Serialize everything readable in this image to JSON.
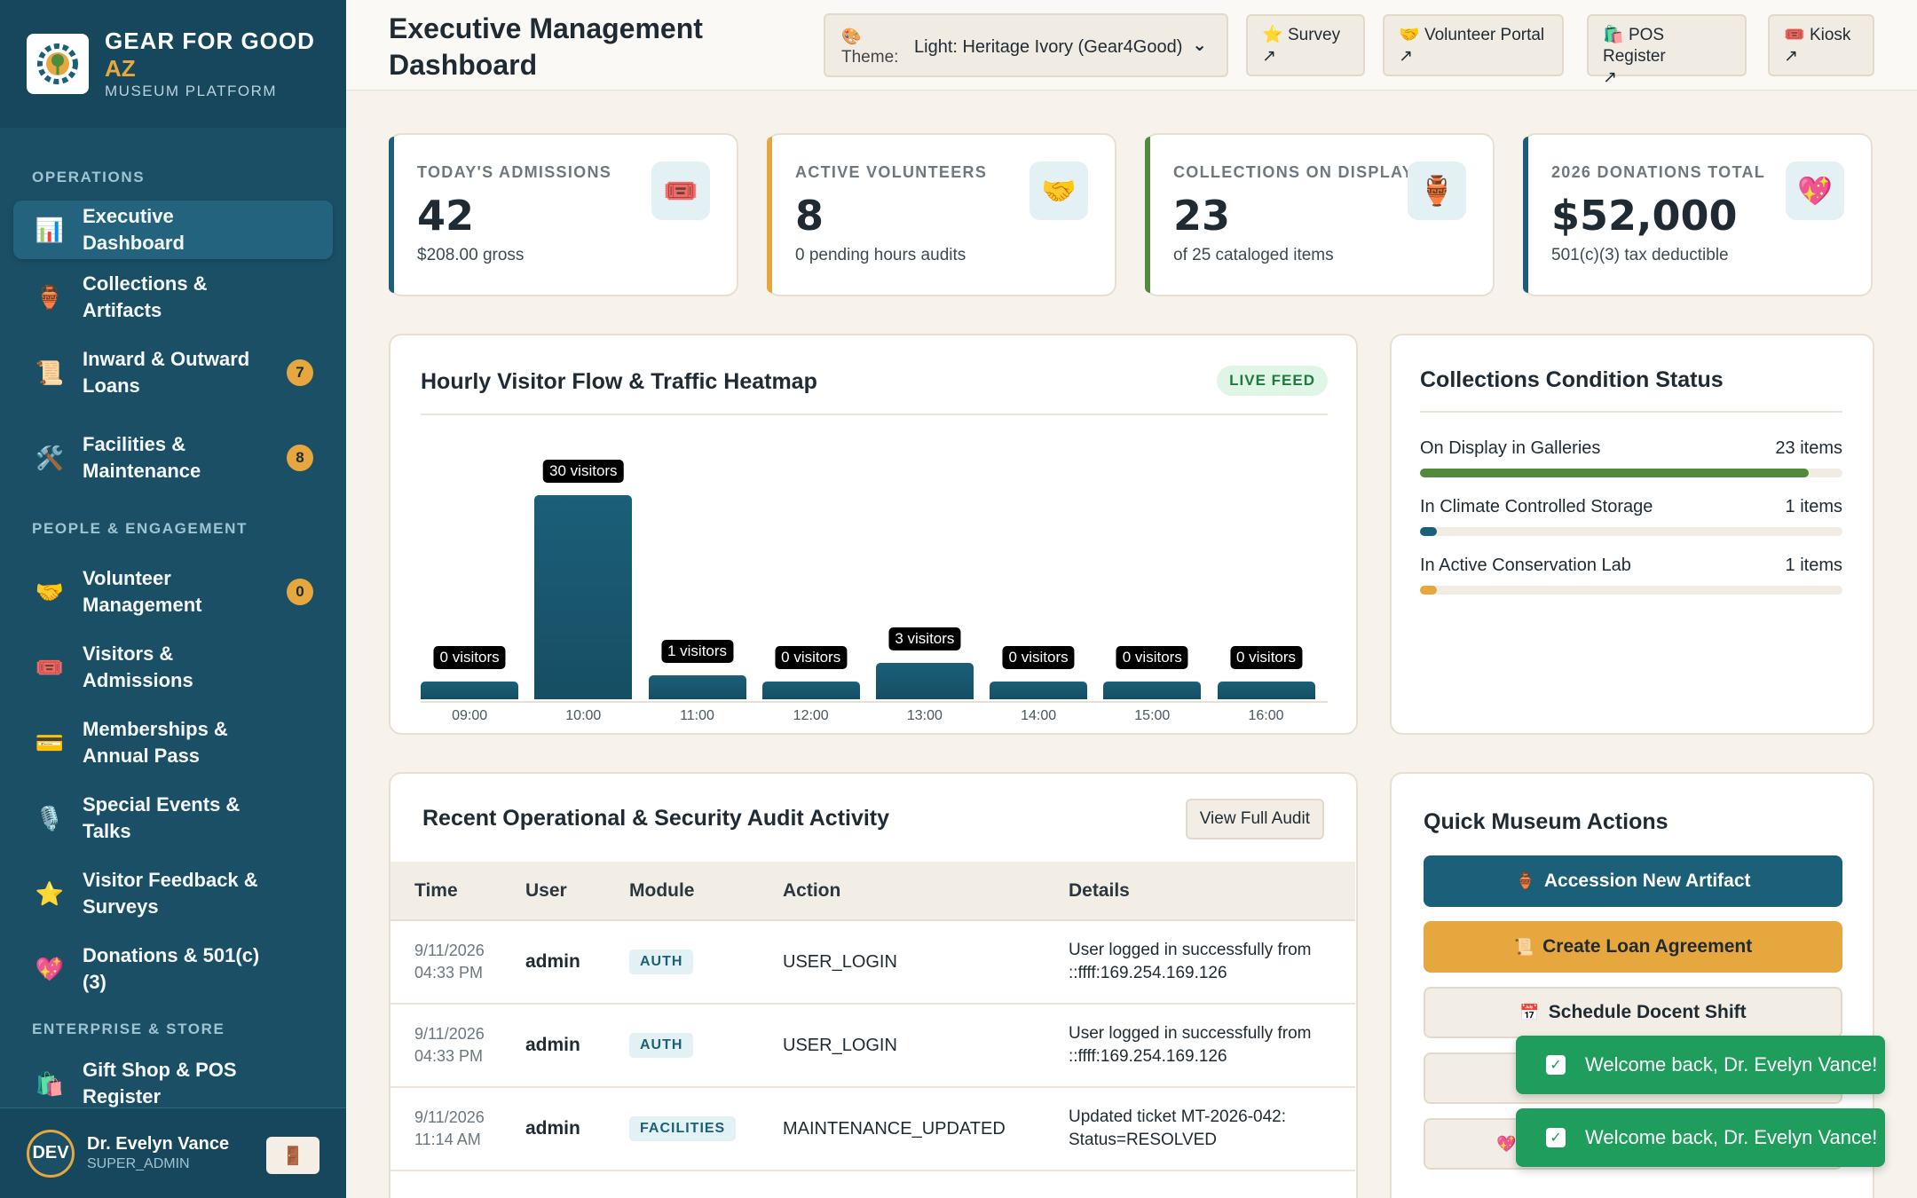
{
  "brand": {
    "name": "GEAR FOR GOOD",
    "region": "AZ",
    "subtitle": "MUSEUM PLATFORM",
    "logo_icon": "gear-tree-logo"
  },
  "sidebar": {
    "sections": [
      "OPERATIONS",
      "PEOPLE & ENGAGEMENT",
      "ENTERPRISE & STORE"
    ],
    "items": [
      {
        "label": "Executive Dashboard",
        "icon": "📊",
        "active": true
      },
      {
        "label": "Collections & Artifacts",
        "icon": "🏺"
      },
      {
        "label": "Inward & Outward Loans",
        "icon": "📜",
        "badge": "7"
      },
      {
        "label": "Facilities & Maintenance",
        "icon": "🛠️",
        "badge": "8"
      },
      {
        "label": "Volunteer Management",
        "icon": "🤝",
        "badge": "0"
      },
      {
        "label": "Visitors & Admissions",
        "icon": "🎟️"
      },
      {
        "label": "Memberships & Annual Pass",
        "icon": "💳"
      },
      {
        "label": "Special Events & Talks",
        "icon": "🎙️"
      },
      {
        "label": "Visitor Feedback & Surveys",
        "icon": "⭐"
      },
      {
        "label": "Donations & 501(c)(3)",
        "icon": "💖"
      },
      {
        "label": "Gift Shop & POS Register",
        "icon": "🛍️"
      }
    ]
  },
  "user": {
    "initials": "DEV",
    "name": "Dr. Evelyn Vance",
    "role": "SUPER_ADMIN",
    "logout_icon": "🚪"
  },
  "header": {
    "title": "Executive Management Dashboard",
    "theme_label": "Theme:",
    "theme_value": "Light: Heritage Ivory (Gear4Good)",
    "theme_icon": "🎨",
    "links": [
      {
        "icon": "⭐",
        "label": "Survey",
        "arrow": "↗"
      },
      {
        "icon": "🤝",
        "label": "Volunteer Portal",
        "arrow": "↗"
      },
      {
        "icon": "🛍️",
        "label": "POS Register",
        "arrow": "↗"
      },
      {
        "icon": "🎟️",
        "label": "Kiosk",
        "arrow": "↗"
      }
    ]
  },
  "stats": [
    {
      "label": "TODAY'S ADMISSIONS",
      "value": "42",
      "sub": "$208.00 gross",
      "icon": "🎟️"
    },
    {
      "label": "ACTIVE VOLUNTEERS",
      "value": "8",
      "sub": "0 pending hours audits",
      "icon": "🤝"
    },
    {
      "label": "COLLECTIONS ON DISPLAY",
      "value": "23",
      "sub": "of 25 cataloged items",
      "icon": "🏺"
    },
    {
      "label": "2026 DONATIONS TOTAL",
      "value": "$52,000",
      "sub": "501(c)(3) tax deductible",
      "icon": "💖"
    }
  ],
  "visitor_flow": {
    "title": "Hourly Visitor Flow & Traffic Heatmap",
    "badge": "LIVE FEED",
    "chart_data": {
      "type": "bar",
      "categories": [
        "09:00",
        "10:00",
        "11:00",
        "12:00",
        "13:00",
        "14:00",
        "15:00",
        "16:00"
      ],
      "values": [
        0,
        30,
        1,
        0,
        3,
        0,
        0,
        0
      ],
      "data_labels": [
        "0 visitors",
        "30 visitors",
        "1 visitors",
        "0 visitors",
        "3 visitors",
        "0 visitors",
        "0 visitors",
        "0 visitors"
      ]
    }
  },
  "conditions": {
    "title": "Collections Condition Status",
    "rows": [
      {
        "name": "On Display in Galleries",
        "count": "23 items",
        "value": 23,
        "color": "#4f8a3d"
      },
      {
        "name": "In Climate Controlled Storage",
        "count": "1 items",
        "value": 1,
        "color": "#1b5f78"
      },
      {
        "name": "In Active Conservation Lab",
        "count": "1 items",
        "value": 1,
        "color": "#e6a83e"
      }
    ],
    "total": 25
  },
  "audit": {
    "title": "Recent Operational & Security Audit Activity",
    "button": "View Full Audit",
    "columns": [
      "Time",
      "User",
      "Module",
      "Action",
      "Details"
    ],
    "rows": [
      {
        "date": "9/11/2026",
        "time": "04:33 PM",
        "user": "admin",
        "module": "AUTH",
        "action": "USER_LOGIN",
        "details": "User logged in successfully from ::ffff:169.254.169.126"
      },
      {
        "date": "9/11/2026",
        "time": "04:33 PM",
        "user": "admin",
        "module": "AUTH",
        "action": "USER_LOGIN",
        "details": "User logged in successfully from ::ffff:169.254.169.126"
      },
      {
        "date": "9/11/2026",
        "time": "11:14 AM",
        "user": "admin",
        "module": "FACILITIES",
        "action": "MAINTENANCE_UPDATED",
        "details": "Updated ticket MT-2026-042: Status=RESOLVED"
      }
    ]
  },
  "quick_actions": {
    "title": "Quick Museum Actions",
    "buttons": [
      {
        "icon": "🏺",
        "label": "Accession New Artifact"
      },
      {
        "icon": "📜",
        "label": "Create Loan Agreement"
      },
      {
        "icon": "📅",
        "label": "Schedule Docent Shift"
      },
      {
        "icon": "",
        "label": ""
      },
      {
        "icon": "💖",
        "label": ""
      }
    ]
  },
  "toasts": [
    "Welcome back, Dr. Evelyn Vance!",
    "Welcome back, Dr. Evelyn Vance!"
  ],
  "colors": {
    "sidebar": "#1b4f66",
    "accent": "#1b5f78",
    "gold": "#e6a83e",
    "green": "#4f8a3d",
    "success": "#1f9d5c"
  }
}
